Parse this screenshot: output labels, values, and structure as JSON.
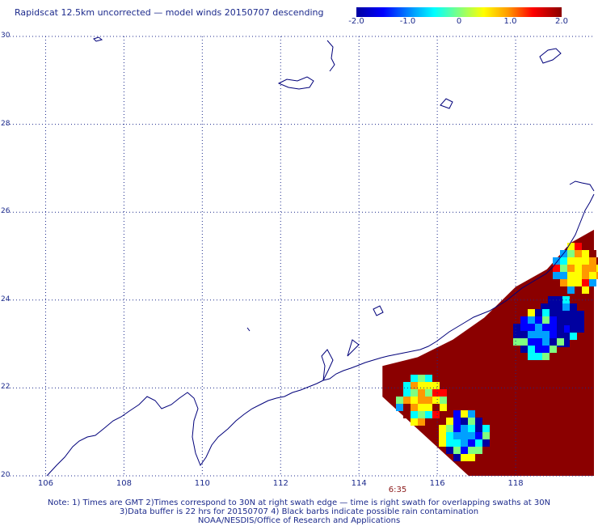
{
  "header": {
    "title": "Rapidscat 12.5km uncorrected — model winds 20150707 descending"
  },
  "colorbar": {
    "ticks": [
      "-2.0",
      "-1.0",
      "0",
      "1.0",
      "2.0"
    ],
    "tick_values": [
      -2,
      -1,
      0,
      1,
      2
    ],
    "range": [
      -2,
      2
    ],
    "colors": [
      "#0000a0",
      "#0000ff",
      "#00a0ff",
      "#00ffff",
      "#80ff80",
      "#ffff00",
      "#ff9900",
      "#ff0000",
      "#8b0000"
    ]
  },
  "map": {
    "lat_labels": [
      "30",
      "28",
      "26",
      "24",
      "22",
      "20"
    ],
    "lon_labels": [
      "106",
      "108",
      "110",
      "112",
      "114",
      "116",
      "118"
    ],
    "lat_values": [
      30,
      28,
      26,
      24,
      22,
      20
    ],
    "lon_values": [
      106,
      108,
      110,
      112,
      114,
      116,
      118
    ],
    "lat_range": [
      20,
      30
    ],
    "lon_range": [
      105,
      120
    ],
    "grid": "dotted",
    "coast_color": "#00007a",
    "time_label": "6:35"
  },
  "footer": {
    "line1": "Note: 1) Times are GMT 2)Times correspond to 30N at right swath edge — time is right swath for overlapping swaths at 30N",
    "line2": "3)Data buffer is 22 hrs for 20150707 4) Black barbs indicate possible rain contamination",
    "line3": "NOAA/NESDIS/Office of Research and Applications"
  },
  "chart_data": {
    "type": "heatmap",
    "title": "Rapidscat 12.5km uncorrected — model winds 20150707 descending",
    "xlabel": "",
    "ylabel": "",
    "xlim": [
      105,
      120
    ],
    "ylim": [
      20,
      30
    ],
    "value_range": [
      -2,
      2
    ],
    "swath_edge_lonlat": [
      [
        114.6,
        22.5
      ],
      [
        115.5,
        22.7
      ],
      [
        116.4,
        23.1
      ],
      [
        117.2,
        23.6
      ],
      [
        118.0,
        24.3
      ],
      [
        118.8,
        24.7
      ],
      [
        119.4,
        25.3
      ],
      [
        120,
        25.6
      ]
    ],
    "notable_regions": [
      {
        "lon": 119.0,
        "lat": 23.6,
        "value": -2.0
      },
      {
        "lon": 118.5,
        "lat": 23.3,
        "value": -1.0
      },
      {
        "lon": 116.6,
        "lat": 21.0,
        "value": -0.8
      },
      {
        "lon": 115.5,
        "lat": 21.8,
        "value": 0.8
      },
      {
        "lon": 119.5,
        "lat": 24.8,
        "value": 0.5
      }
    ]
  }
}
